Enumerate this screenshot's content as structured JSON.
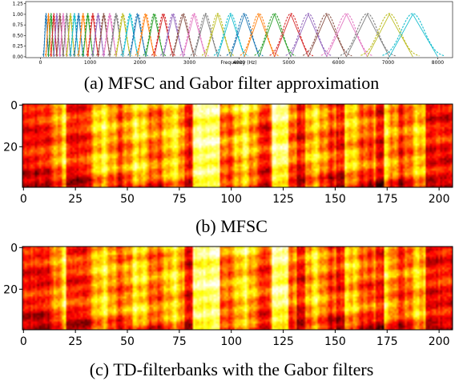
{
  "chart_data": [
    {
      "type": "line",
      "caption": "(a) MFSC and Gabor filter approximation",
      "xlabel": "Frequency (Hz)",
      "xlim": [
        -300,
        8300
      ],
      "ylim": [
        -0.02,
        1.3
      ],
      "x_ticks": [
        "0",
        "1000",
        "2000",
        "3000",
        "4000",
        "5000",
        "6000",
        "7000",
        "8000"
      ],
      "y_ticks": [
        "0.00",
        "0.25",
        "0.50",
        "0.75",
        "1.00",
        "1.25"
      ],
      "num_filters": 40,
      "mel_min_hz": 64,
      "mel_max_hz": 8000,
      "palette": [
        "#1f77b4",
        "#ff7f0e",
        "#2ca02c",
        "#d62728",
        "#9467bd",
        "#8c564b",
        "#e377c2",
        "#7f7f7f",
        "#bcbd22",
        "#17becf"
      ],
      "series_styles": [
        "solid (triangular MFSC filters)",
        "dashed (Gabor approximation)"
      ]
    },
    {
      "type": "heatmap",
      "caption": "(b) MFSC",
      "x_ticks": [
        "0",
        "25",
        "50",
        "75",
        "100",
        "125",
        "150",
        "175",
        "200"
      ],
      "y_ticks": [
        "0",
        "20"
      ],
      "xlim": [
        -0.5,
        206.5
      ],
      "ylim": [
        39.5,
        -0.5
      ],
      "n_frames": 207,
      "n_bands": 40,
      "colormap": "hot",
      "dark_frames": [
        0,
        1,
        2,
        3,
        4,
        5,
        6,
        7,
        8,
        9,
        10,
        11,
        12,
        21,
        22,
        23,
        24,
        25,
        26,
        27,
        28,
        29,
        30,
        78,
        79,
        80,
        81,
        115,
        116,
        117,
        118,
        132,
        133,
        134,
        135,
        151,
        152,
        153,
        154,
        170,
        171,
        172,
        173,
        194,
        195,
        196,
        197,
        198,
        199,
        200,
        201,
        202,
        203,
        204,
        205,
        206
      ],
      "bright_frames": [
        82,
        83,
        84,
        85,
        86,
        87,
        88,
        89,
        90,
        91,
        92,
        93,
        94,
        120,
        121,
        122,
        123,
        124,
        125,
        126,
        127
      ]
    },
    {
      "type": "heatmap",
      "caption": "(c) TD-filterbanks with the Gabor filters",
      "x_ticks": [
        "0",
        "25",
        "50",
        "75",
        "100",
        "125",
        "150",
        "175",
        "200"
      ],
      "y_ticks": [
        "0",
        "20"
      ],
      "xlim": [
        -0.5,
        206.5
      ],
      "ylim": [
        39.5,
        -0.5
      ],
      "n_frames": 207,
      "n_bands": 40,
      "colormap": "hot",
      "dark_frames": [
        0,
        1,
        2,
        3,
        4,
        5,
        6,
        7,
        8,
        9,
        10,
        11,
        12,
        21,
        22,
        23,
        24,
        25,
        26,
        27,
        28,
        29,
        30,
        78,
        79,
        80,
        81,
        115,
        116,
        117,
        118,
        132,
        133,
        134,
        135,
        151,
        152,
        153,
        154,
        170,
        171,
        172,
        173,
        194,
        195,
        196,
        197,
        198,
        199,
        200,
        201,
        202,
        203,
        204,
        205,
        206
      ],
      "bright_frames": [
        82,
        83,
        84,
        85,
        86,
        87,
        88,
        89,
        90,
        91,
        92,
        93,
        94,
        120,
        121,
        122,
        123,
        124,
        125,
        126,
        127
      ]
    }
  ]
}
